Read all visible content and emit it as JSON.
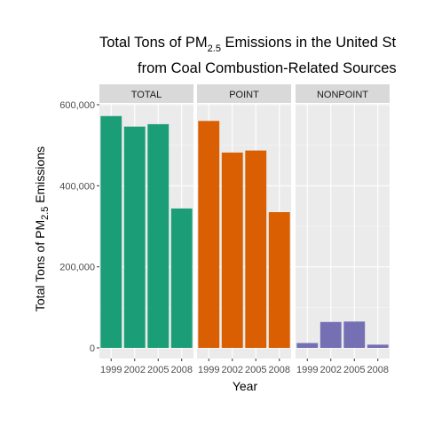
{
  "chart_data": {
    "type": "bar",
    "title_line1": {
      "pre": "Total Tons of PM",
      "sub": "2.5",
      "post": " Emissions in the United St"
    },
    "title_line2": "from Coal Combustion-Related Sources",
    "xlabel": "Year",
    "ylabel": {
      "pre": "Total Tons of PM",
      "sub": "2.5",
      "post": " Emissions"
    },
    "ylim": [
      0,
      650000
    ],
    "y_ticks": [
      0,
      200000,
      400000,
      600000
    ],
    "y_tick_labels": [
      "0",
      "200,000",
      "400,000",
      "600,000"
    ],
    "categories": [
      "1999",
      "2002",
      "2005",
      "2008"
    ],
    "grid": true,
    "facets": [
      {
        "name": "TOTAL",
        "color": "#1B9E77",
        "values": [
          572000,
          546000,
          552000,
          344000
        ]
      },
      {
        "name": "POINT",
        "color": "#D95F02",
        "values": [
          560000,
          482000,
          487000,
          335000
        ]
      },
      {
        "name": "NONPOINT",
        "color": "#7570B3",
        "values": [
          12000,
          64000,
          65000,
          8000
        ]
      }
    ]
  }
}
